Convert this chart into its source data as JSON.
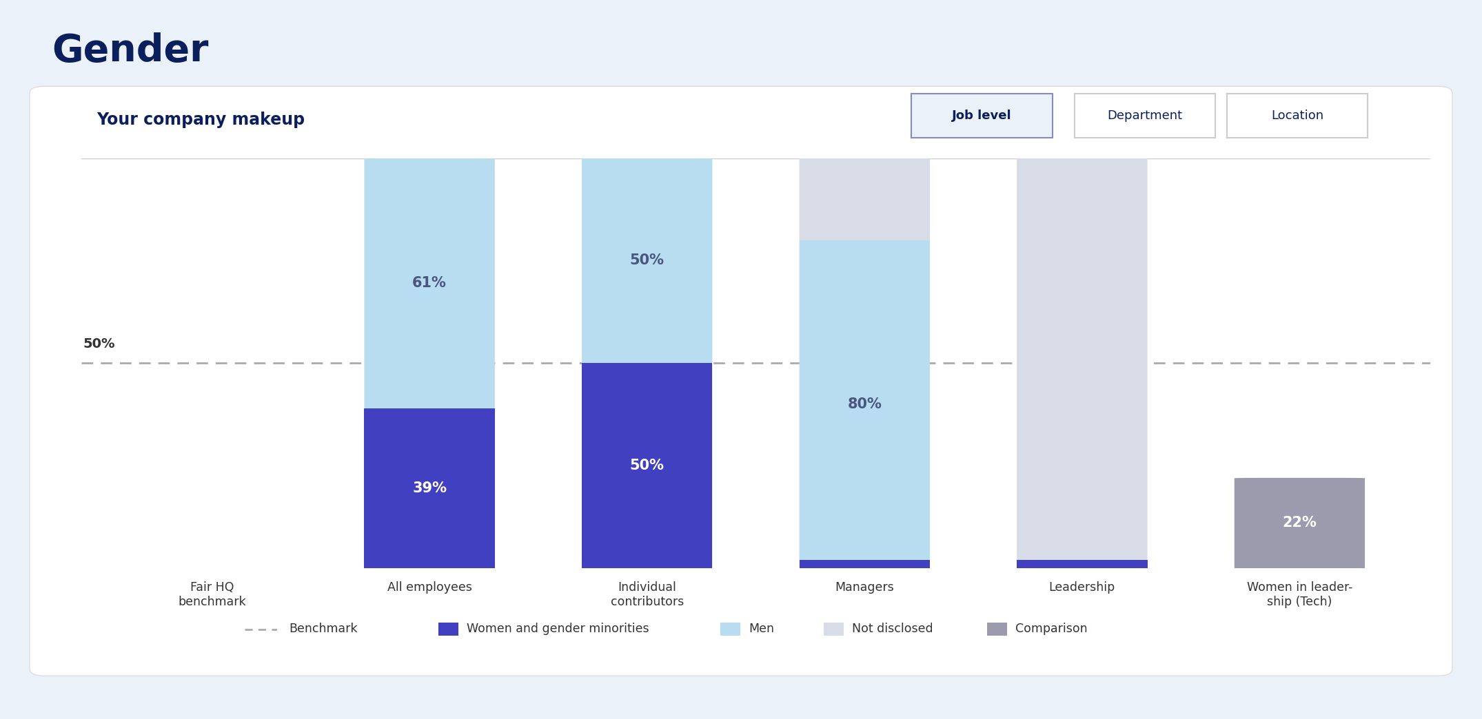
{
  "title": "Gender",
  "subtitle": "Your company makeup",
  "background_outer": "#EBF1F8",
  "background_inner": "#FFFFFF",
  "categories": [
    "Fair HQ\nbenchmark",
    "All employees",
    "Individual\ncontributors",
    "Managers",
    "Leadership",
    "Women in leader-\nship (Tech)"
  ],
  "benchmark_value": 50,
  "colors": {
    "women": "#4040C0",
    "men": "#B8DCF0",
    "not_disclosed": "#D8DCE6",
    "comparison": "#9B9BAD",
    "benchmark_line": "#AAAAAA"
  },
  "bars": [
    {
      "x": 1,
      "women": 39,
      "men": 61,
      "label_women": "39%",
      "label_men": "61%",
      "type": "women_men"
    },
    {
      "x": 2,
      "women": 50,
      "men": 50,
      "label_women": "50%",
      "label_men": "50%",
      "type": "women_men"
    },
    {
      "x": 3,
      "men": 80,
      "not_disclosed": 20,
      "label_men": "80%",
      "type": "men_nd"
    },
    {
      "x": 4,
      "not_disclosed": 100,
      "type": "nd_only"
    },
    {
      "x": 5,
      "comparison": 22,
      "label": "22%",
      "type": "comparison"
    }
  ],
  "legend_items": [
    {
      "label": "Benchmark",
      "type": "dashed",
      "color": "#AAAAAA"
    },
    {
      "label": "Women and gender minorities",
      "type": "rect",
      "color": "#4040C0"
    },
    {
      "label": "Men",
      "type": "rect",
      "color": "#B8DCF0"
    },
    {
      "label": "Not disclosed",
      "type": "rect",
      "color": "#D8DCE6"
    },
    {
      "label": "Comparison",
      "type": "rect",
      "color": "#9B9BAD"
    }
  ],
  "button_labels": [
    "Job level",
    "Department",
    "Location"
  ],
  "bar_width": 0.6,
  "ylim": [
    0,
    100
  ]
}
